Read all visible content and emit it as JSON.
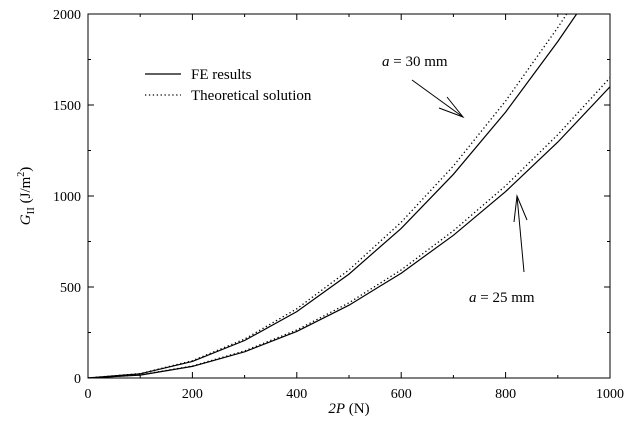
{
  "chart_data": {
    "type": "line",
    "xlabel": "2P (N)",
    "ylabel": "G_II (J/m^2)",
    "xlim": [
      0,
      1000
    ],
    "ylim": [
      0,
      2000
    ],
    "xticks": [
      0,
      200,
      400,
      600,
      800,
      1000
    ],
    "yticks": [
      0,
      500,
      1000,
      1500,
      2000
    ],
    "grid": false,
    "legend_placement": "top-left",
    "legend": [
      {
        "label": "FE results",
        "style": "solid"
      },
      {
        "label": "Theoretical solution",
        "style": "dotted"
      }
    ],
    "annotations": [
      {
        "text": "a = 30 mm",
        "italic_part": "a",
        "rest": " = 30 mm",
        "x": 722,
        "y": 1430
      },
      {
        "text": "a = 25 mm",
        "italic_part": "a",
        "rest": " = 25 mm",
        "x": 820,
        "y": 1000
      }
    ],
    "series": [
      {
        "name": "FE results",
        "group": "a = 30 mm",
        "style": "solid",
        "x": [
          0,
          100,
          200,
          300,
          400,
          500,
          600,
          700,
          800,
          900,
          936
        ],
        "y": [
          0,
          23,
          91,
          206,
          365,
          571,
          822,
          1119,
          1461,
          1849,
          2000
        ]
      },
      {
        "name": "Theoretical solution",
        "group": "a = 30 mm",
        "style": "dotted",
        "x": [
          0,
          100,
          200,
          300,
          400,
          500,
          600,
          700,
          800,
          900,
          917
        ],
        "y": [
          0,
          24,
          95,
          214,
          380,
          594,
          856,
          1165,
          1522,
          1926,
          2000
        ]
      },
      {
        "name": "FE results",
        "group": "a = 25 mm",
        "style": "solid",
        "x": [
          0,
          100,
          200,
          300,
          400,
          500,
          600,
          700,
          800,
          900,
          1000
        ],
        "y": [
          0,
          16,
          64,
          144,
          256,
          400,
          576,
          784,
          1024,
          1296,
          1600
        ]
      },
      {
        "name": "Theoretical solution",
        "group": "a = 25 mm",
        "style": "dotted",
        "x": [
          0,
          100,
          200,
          300,
          400,
          500,
          600,
          700,
          800,
          900,
          1000
        ],
        "y": [
          0,
          17,
          66,
          149,
          264,
          413,
          594,
          809,
          1056,
          1337,
          1650
        ]
      }
    ]
  }
}
